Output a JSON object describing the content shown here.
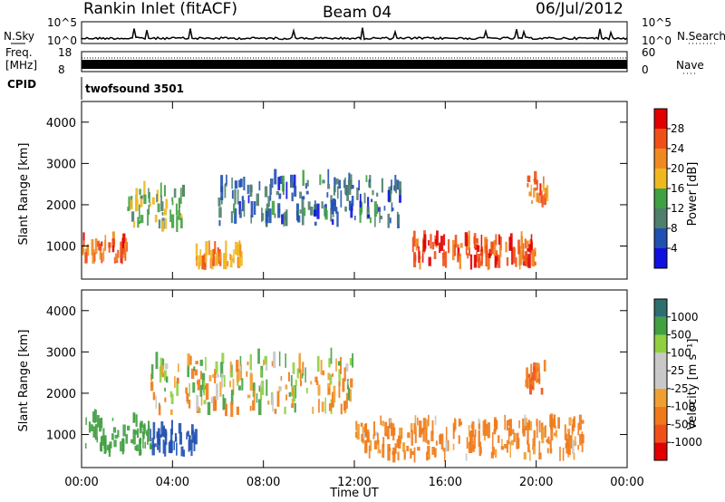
{
  "header": {
    "station": "Rankin Inlet (fitACF)",
    "beam": "Beam 04",
    "date": "06/Jul/2012"
  },
  "top_panels": {
    "nsky_label": "N.Sky",
    "nsearch_label": "N.Search",
    "nsky_ticks": [
      "10^5",
      "10^0"
    ],
    "nsearch_ticks": [
      "10^5",
      "10^0"
    ],
    "freq_label_1": "Freq.",
    "freq_label_2": "[MHz]",
    "freq_ticks": [
      "18",
      "8"
    ],
    "nave_label": "Nave",
    "nave_ticks": [
      "60",
      "0"
    ],
    "cpid_label": "CPID",
    "cpid_value": "twofsound 3501"
  },
  "colors": {
    "power_scale": [
      "#1010e0",
      "#2050b0",
      "#4e7f6d",
      "#41a042",
      "#f0b820",
      "#f08a20",
      "#f05018",
      "#e00000"
    ],
    "velocity_scale": [
      "#e00000",
      "#f05018",
      "#f07a18",
      "#f0a030",
      "#c8c8c8",
      "#c8c8c8",
      "#90d040",
      "#41a042",
      "#2e6e6e",
      "#2050b0",
      "#1a3fc0"
    ]
  },
  "chart_data": [
    {
      "type": "heatmap",
      "name_hint": "power panel",
      "xlabel": "",
      "ylabel": "Slant Range [km]",
      "x_range": [
        "00:00",
        "00:00"
      ],
      "x_ticks": [
        "00:00",
        "04:00",
        "08:00",
        "12:00",
        "16:00",
        "20:00",
        "00:00"
      ],
      "ylim": [
        200,
        4500
      ],
      "y_ticks": [
        1000,
        2000,
        3000,
        4000
      ],
      "colorbar_label": "Power [dB]",
      "colorbar_ticks": [
        4,
        8,
        12,
        16,
        20,
        24,
        28
      ],
      "features": [
        {
          "time_range_h": [
            0,
            2
          ],
          "range_km": [
            600,
            1100
          ],
          "level_db": 26
        },
        {
          "time_range_h": [
            2,
            4.5
          ],
          "range_km": [
            1400,
            2300
          ],
          "level_db": 14
        },
        {
          "time_range_h": [
            5,
            7
          ],
          "range_km": [
            500,
            900
          ],
          "level_db": 22
        },
        {
          "time_range_h": [
            6,
            14
          ],
          "range_km": [
            1500,
            2600
          ],
          "level_db": 8
        },
        {
          "time_range_h": [
            14.5,
            20
          ],
          "range_km": [
            500,
            1100
          ],
          "level_db": 26
        },
        {
          "time_range_h": [
            19.5,
            20.5
          ],
          "range_km": [
            2000,
            2600
          ],
          "level_db": 24
        }
      ]
    },
    {
      "type": "heatmap",
      "name_hint": "velocity panel",
      "xlabel": "Time UT",
      "ylabel": "Slant Range [km]",
      "x_ticks": [
        "00:00",
        "04:00",
        "08:00",
        "12:00",
        "16:00",
        "20:00",
        "00:00"
      ],
      "ylim": [
        200,
        4500
      ],
      "y_ticks": [
        1000,
        2000,
        3000,
        4000
      ],
      "colorbar_label": "Velocity [m s⁻¹]",
      "colorbar_ticks": [
        1000,
        500,
        100,
        25,
        -25,
        -100,
        -500,
        -1000
      ],
      "features": [
        {
          "time_range_h": [
            0,
            3
          ],
          "range_km": [
            500,
            1400
          ],
          "velocity": 300
        },
        {
          "time_range_h": [
            3,
            5
          ],
          "range_km": [
            500,
            1100
          ],
          "velocity": 700
        },
        {
          "time_range_h": [
            3,
            12
          ],
          "range_km": [
            1500,
            2800
          ],
          "velocity": 0
        },
        {
          "time_range_h": [
            12,
            22
          ],
          "range_km": [
            400,
            1300
          ],
          "velocity": -200
        },
        {
          "time_range_h": [
            19.5,
            20.5
          ],
          "range_km": [
            2000,
            2600
          ],
          "velocity": -500
        }
      ]
    }
  ],
  "xaxis_title": "Time UT"
}
